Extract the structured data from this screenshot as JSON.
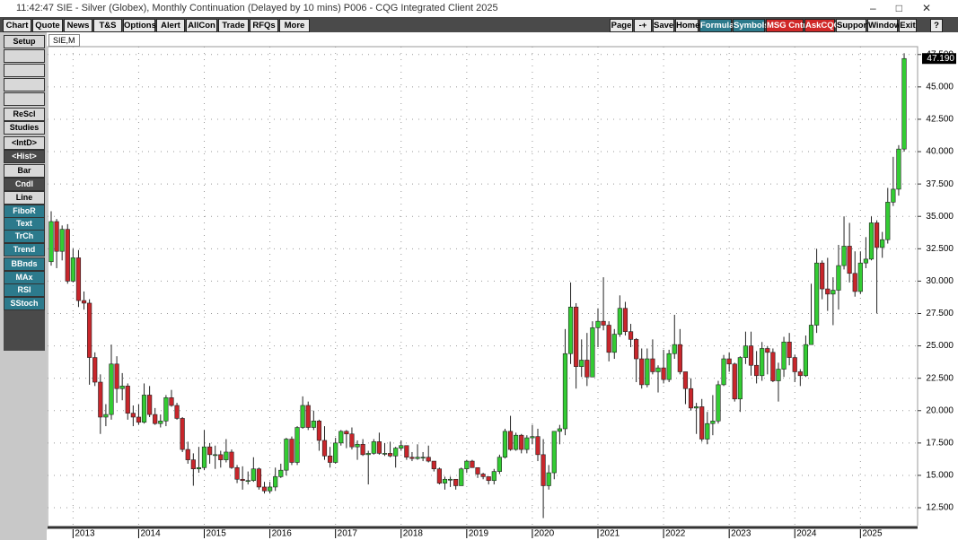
{
  "window": {
    "title": "11:42:47  SIE - Silver (Globex), Monthly Continuation (Delayed by 10 mins)  P006 - CQG Integrated Client 2025"
  },
  "menu": {
    "items": [
      "Chart",
      "Quote",
      "News",
      "T&S",
      "Options",
      "Alert",
      "AllCon",
      "Trade",
      "RFQs",
      "More"
    ]
  },
  "toolbar_right": {
    "items": [
      {
        "label": "Page",
        "style": "plain"
      },
      {
        "label": "-+",
        "style": "plain"
      },
      {
        "label": "Save",
        "style": "plain"
      },
      {
        "label": "Home",
        "style": "plain"
      },
      {
        "label": "Formula",
        "style": "teal"
      },
      {
        "label": "Symbols",
        "style": "teal"
      },
      {
        "label": "MSG Cntr",
        "style": "red"
      },
      {
        "label": "AskCQG",
        "style": "red"
      },
      {
        "label": "Support",
        "style": "plain"
      },
      {
        "label": "Window",
        "style": "plain"
      },
      {
        "label": "Exit",
        "style": "plain"
      },
      {
        "label": "?",
        "style": "plain"
      }
    ]
  },
  "sidebar": {
    "items": [
      {
        "label": "Setup",
        "style": "light"
      },
      {
        "label": "ReScl",
        "style": "light"
      },
      {
        "label": "Studies",
        "style": "light"
      },
      {
        "label": "<IntD>",
        "style": "light"
      },
      {
        "label": "<Hist>",
        "style": "dark"
      },
      {
        "label": "Bar",
        "style": "light"
      },
      {
        "label": "Cndl",
        "style": "dark"
      },
      {
        "label": "Line",
        "style": "light"
      },
      {
        "label": "FiboR",
        "style": "teal"
      },
      {
        "label": "Text",
        "style": "teal"
      },
      {
        "label": "TrCh",
        "style": "teal"
      },
      {
        "label": "Trend",
        "style": "teal"
      },
      {
        "label": "BBnds",
        "style": "teal"
      },
      {
        "label": "MAx",
        "style": "teal"
      },
      {
        "label": "RSI",
        "style": "teal"
      },
      {
        "label": "SStoch",
        "style": "teal"
      }
    ]
  },
  "tab": {
    "label": "SIE,M"
  },
  "chart_data": {
    "type": "candlestick",
    "up_color": "#33cc33",
    "down_color": "#c8262b",
    "grid": true,
    "last_label": "47.190",
    "ylim": [
      10.84,
      47.9
    ],
    "yticks": [
      {
        "value": 12.5,
        "label": "12.500"
      },
      {
        "value": 15,
        "label": "15.000"
      },
      {
        "value": 17.5,
        "label": "17.500"
      },
      {
        "value": 20,
        "label": "20.000"
      },
      {
        "value": 22.5,
        "label": "22.500"
      },
      {
        "value": 25,
        "label": "25.000"
      },
      {
        "value": 27.5,
        "label": "27.500"
      },
      {
        "value": 30,
        "label": "30.000"
      },
      {
        "value": 32.5,
        "label": "32.500"
      },
      {
        "value": 35,
        "label": "35.000"
      },
      {
        "value": 37.5,
        "label": "37.500"
      },
      {
        "value": 40,
        "label": "40.000"
      },
      {
        "value": 42.5,
        "label": "42.500"
      },
      {
        "value": 45,
        "label": "45.000"
      },
      {
        "value": 47.5,
        "label": "47.500"
      }
    ],
    "categories": [
      null,
      null,
      null,
      null,
      "2013",
      null,
      null,
      null,
      null,
      null,
      null,
      null,
      null,
      null,
      null,
      null,
      "2014",
      null,
      null,
      null,
      null,
      null,
      null,
      null,
      null,
      null,
      null,
      null,
      "2015",
      null,
      null,
      null,
      null,
      null,
      null,
      null,
      null,
      null,
      null,
      null,
      "2016",
      null,
      null,
      null,
      null,
      null,
      null,
      null,
      null,
      null,
      null,
      null,
      "2017",
      null,
      null,
      null,
      null,
      null,
      null,
      null,
      null,
      null,
      null,
      null,
      "2018",
      null,
      null,
      null,
      null,
      null,
      null,
      null,
      null,
      null,
      null,
      null,
      "2019",
      null,
      null,
      null,
      null,
      null,
      null,
      null,
      null,
      null,
      null,
      null,
      "2020",
      null,
      null,
      null,
      null,
      null,
      null,
      null,
      null,
      null,
      null,
      null,
      "2021",
      null,
      null,
      null,
      null,
      null,
      null,
      null,
      null,
      null,
      null,
      null,
      "2022",
      null,
      null,
      null,
      null,
      null,
      null,
      null,
      null,
      null,
      null,
      null,
      "2023",
      null,
      null,
      null,
      null,
      null,
      null,
      null,
      null,
      null,
      null,
      null,
      "2024",
      null,
      null,
      null,
      null,
      null,
      null,
      null,
      null,
      null,
      null,
      null,
      "2025",
      null,
      null,
      null,
      null,
      null,
      null,
      null,
      null
    ],
    "values": [
      [
        31.5,
        35.4,
        31.2,
        34.6
      ],
      [
        34.6,
        34.8,
        31.0,
        32.3
      ],
      [
        32.3,
        34.3,
        31.6,
        34.0
      ],
      [
        34.0,
        34.4,
        29.8,
        30.0
      ],
      [
        30.0,
        32.5,
        29.9,
        31.8
      ],
      [
        31.8,
        32.4,
        28.0,
        28.5
      ],
      [
        28.5,
        29.2,
        27.8,
        28.3
      ],
      [
        28.3,
        28.6,
        22.0,
        24.1
      ],
      [
        24.1,
        24.5,
        21.9,
        22.2
      ],
      [
        22.2,
        22.8,
        18.2,
        19.5
      ],
      [
        19.5,
        20.5,
        18.8,
        19.7
      ],
      [
        19.7,
        25.1,
        19.3,
        23.6
      ],
      [
        23.6,
        24.2,
        20.6,
        21.7
      ],
      [
        21.7,
        22.9,
        20.8,
        21.9
      ],
      [
        21.9,
        22.1,
        19.3,
        19.8
      ],
      [
        19.8,
        20.4,
        18.8,
        19.5
      ],
      [
        19.5,
        20.5,
        18.9,
        19.1
      ],
      [
        19.1,
        22.1,
        19.0,
        21.2
      ],
      [
        21.2,
        21.9,
        19.5,
        19.7
      ],
      [
        19.7,
        20.2,
        18.9,
        19.0
      ],
      [
        19.0,
        19.7,
        18.7,
        19.2
      ],
      [
        19.2,
        21.2,
        18.8,
        21.0
      ],
      [
        21.0,
        21.6,
        20.3,
        20.4
      ],
      [
        20.4,
        20.6,
        19.3,
        19.4
      ],
      [
        19.4,
        19.5,
        16.8,
        17.0
      ],
      [
        17.0,
        17.6,
        15.9,
        16.2
      ],
      [
        16.2,
        16.7,
        14.2,
        15.5
      ],
      [
        15.5,
        17.2,
        15.2,
        15.6
      ],
      [
        15.6,
        18.5,
        15.4,
        17.2
      ],
      [
        17.2,
        17.5,
        15.9,
        16.6
      ],
      [
        16.6,
        17.3,
        15.5,
        16.6
      ],
      [
        16.6,
        16.9,
        15.6,
        16.2
      ],
      [
        16.2,
        17.8,
        16.0,
        16.8
      ],
      [
        16.8,
        17.0,
        15.5,
        15.6
      ],
      [
        15.6,
        15.8,
        14.4,
        14.7
      ],
      [
        14.7,
        15.7,
        13.9,
        14.6
      ],
      [
        14.6,
        15.3,
        14.3,
        14.6
      ],
      [
        14.6,
        16.4,
        14.5,
        15.5
      ],
      [
        15.5,
        15.6,
        13.9,
        14.1
      ],
      [
        14.1,
        14.5,
        13.6,
        13.8
      ],
      [
        13.8,
        14.5,
        13.6,
        14.1
      ],
      [
        14.1,
        15.6,
        13.8,
        14.9
      ],
      [
        14.9,
        15.9,
        14.8,
        15.4
      ],
      [
        15.4,
        17.9,
        15.0,
        17.8
      ],
      [
        17.8,
        18.0,
        15.8,
        16.0
      ],
      [
        16.0,
        18.8,
        15.8,
        18.7
      ],
      [
        18.7,
        21.1,
        18.6,
        20.4
      ],
      [
        20.4,
        20.7,
        18.5,
        18.7
      ],
      [
        18.7,
        20.0,
        18.5,
        19.2
      ],
      [
        19.2,
        19.3,
        16.9,
        17.7
      ],
      [
        17.7,
        18.8,
        16.2,
        16.5
      ],
      [
        16.5,
        17.2,
        15.6,
        16.0
      ],
      [
        16.0,
        17.9,
        15.9,
        17.5
      ],
      [
        17.5,
        18.5,
        17.3,
        18.4
      ],
      [
        18.4,
        18.5,
        17.1,
        18.2
      ],
      [
        18.2,
        18.7,
        17.0,
        17.2
      ],
      [
        17.2,
        17.7,
        16.2,
        17.4
      ],
      [
        17.4,
        17.8,
        16.5,
        16.6
      ],
      [
        16.6,
        16.9,
        14.3,
        16.7
      ],
      [
        16.7,
        17.8,
        16.6,
        17.6
      ],
      [
        17.6,
        18.3,
        16.6,
        16.7
      ],
      [
        16.7,
        17.5,
        16.5,
        16.7
      ],
      [
        16.7,
        17.6,
        16.4,
        16.5
      ],
      [
        16.5,
        17.2,
        15.6,
        17.1
      ],
      [
        17.1,
        17.7,
        16.9,
        17.3
      ],
      [
        17.3,
        17.3,
        16.2,
        16.4
      ],
      [
        16.4,
        16.8,
        16.1,
        16.3
      ],
      [
        16.3,
        17.4,
        16.2,
        16.4
      ],
      [
        16.4,
        16.8,
        16.1,
        16.4
      ],
      [
        16.4,
        17.3,
        16.0,
        16.1
      ],
      [
        16.1,
        16.1,
        15.3,
        15.5
      ],
      [
        15.5,
        15.6,
        14.3,
        14.4
      ],
      [
        14.4,
        14.9,
        13.9,
        14.7
      ],
      [
        14.7,
        14.9,
        14.1,
        14.7
      ],
      [
        14.7,
        14.7,
        13.9,
        14.2
      ],
      [
        14.2,
        15.6,
        14.2,
        15.5
      ],
      [
        15.5,
        16.2,
        15.2,
        16.1
      ],
      [
        16.1,
        16.2,
        15.6,
        15.6
      ],
      [
        15.6,
        15.6,
        14.8,
        15.1
      ],
      [
        15.1,
        15.2,
        14.7,
        14.9
      ],
      [
        14.9,
        14.9,
        14.3,
        14.6
      ],
      [
        14.6,
        15.5,
        14.3,
        15.3
      ],
      [
        15.3,
        16.6,
        15.1,
        16.4
      ],
      [
        16.4,
        18.6,
        16.3,
        18.4
      ],
      [
        18.4,
        19.6,
        16.9,
        17.0
      ],
      [
        17.0,
        18.3,
        16.9,
        18.1
      ],
      [
        18.1,
        18.2,
        16.7,
        17.0
      ],
      [
        17.0,
        18.1,
        16.7,
        17.9
      ],
      [
        17.9,
        18.9,
        17.4,
        18.0
      ],
      [
        18.0,
        18.6,
        16.1,
        16.6
      ],
      [
        16.6,
        17.8,
        11.7,
        14.2
      ],
      [
        14.2,
        15.8,
        13.9,
        15.2
      ],
      [
        15.2,
        18.4,
        14.7,
        18.4
      ],
      [
        18.4,
        18.9,
        17.4,
        18.6
      ],
      [
        18.6,
        26.3,
        18.1,
        24.4
      ],
      [
        24.4,
        29.9,
        23.6,
        28.0
      ],
      [
        28.0,
        28.3,
        21.7,
        23.4
      ],
      [
        23.4,
        25.5,
        22.6,
        23.9
      ],
      [
        23.9,
        26.0,
        21.9,
        22.6
      ],
      [
        22.6,
        26.9,
        22.6,
        26.4
      ],
      [
        26.4,
        27.9,
        24.9,
        26.9
      ],
      [
        26.9,
        30.3,
        26.2,
        26.6
      ],
      [
        26.6,
        26.9,
        23.8,
        24.5
      ],
      [
        24.5,
        26.3,
        24.0,
        25.9
      ],
      [
        25.9,
        28.9,
        25.7,
        27.9
      ],
      [
        27.9,
        28.4,
        25.8,
        26.1
      ],
      [
        26.1,
        26.7,
        24.9,
        25.5
      ],
      [
        25.5,
        25.6,
        22.2,
        24.0
      ],
      [
        24.0,
        24.8,
        21.7,
        22.0
      ],
      [
        22.0,
        24.8,
        21.8,
        24.0
      ],
      [
        24.0,
        25.5,
        22.8,
        23.0
      ],
      [
        23.0,
        23.5,
        21.4,
        23.3
      ],
      [
        23.3,
        24.7,
        22.1,
        22.4
      ],
      [
        22.4,
        24.7,
        22.2,
        24.4
      ],
      [
        24.4,
        27.4,
        24.0,
        25.1
      ],
      [
        25.1,
        26.3,
        22.8,
        23.0
      ],
      [
        23.0,
        23.0,
        20.5,
        21.7
      ],
      [
        21.7,
        22.5,
        20.0,
        20.2
      ],
      [
        20.2,
        20.6,
        18.2,
        20.3
      ],
      [
        20.3,
        20.9,
        17.6,
        17.8
      ],
      [
        17.8,
        19.9,
        17.4,
        19.0
      ],
      [
        19.0,
        21.2,
        18.1,
        19.2
      ],
      [
        19.2,
        22.3,
        19.0,
        22.0
      ],
      [
        22.0,
        24.3,
        21.9,
        24.0
      ],
      [
        24.0,
        24.5,
        23.0,
        23.6
      ],
      [
        23.6,
        23.7,
        20.7,
        20.9
      ],
      [
        20.9,
        24.2,
        19.9,
        24.1
      ],
      [
        24.1,
        26.1,
        23.6,
        25.0
      ],
      [
        25.0,
        26.1,
        22.7,
        23.5
      ],
      [
        23.5,
        24.6,
        22.1,
        22.7
      ],
      [
        22.7,
        25.3,
        22.3,
        24.8
      ],
      [
        24.8,
        25.0,
        22.8,
        24.5
      ],
      [
        24.5,
        24.8,
        22.2,
        22.3
      ],
      [
        22.3,
        23.7,
        20.7,
        23.2
      ],
      [
        23.2,
        25.7,
        22.6,
        25.3
      ],
      [
        25.3,
        26.0,
        23.5,
        24.1
      ],
      [
        24.1,
        24.3,
        22.2,
        23.0
      ],
      [
        23.0,
        23.2,
        21.9,
        22.7
      ],
      [
        22.7,
        25.8,
        22.6,
        25.1
      ],
      [
        25.1,
        29.8,
        25.1,
        26.6
      ],
      [
        26.6,
        32.5,
        26.0,
        31.4
      ],
      [
        31.4,
        31.6,
        28.6,
        29.4
      ],
      [
        29.4,
        31.8,
        27.7,
        29.0
      ],
      [
        29.0,
        30.3,
        26.6,
        29.3
      ],
      [
        29.3,
        32.8,
        27.8,
        31.2
      ],
      [
        31.2,
        35.0,
        30.9,
        32.7
      ],
      [
        32.7,
        34.5,
        29.9,
        30.6
      ],
      [
        30.6,
        32.3,
        28.8,
        29.2
      ],
      [
        29.2,
        32.3,
        29.0,
        31.4
      ],
      [
        31.4,
        33.4,
        31.0,
        31.7
      ],
      [
        31.7,
        35.0,
        31.6,
        34.5
      ],
      [
        34.5,
        34.7,
        27.5,
        32.6
      ],
      [
        32.6,
        33.8,
        31.8,
        33.2
      ],
      [
        33.2,
        37.2,
        32.9,
        36.1
      ],
      [
        36.1,
        39.6,
        35.8,
        37.1
      ],
      [
        37.1,
        40.5,
        36.6,
        40.2
      ],
      [
        40.2,
        47.6,
        40.0,
        47.19
      ]
    ]
  }
}
